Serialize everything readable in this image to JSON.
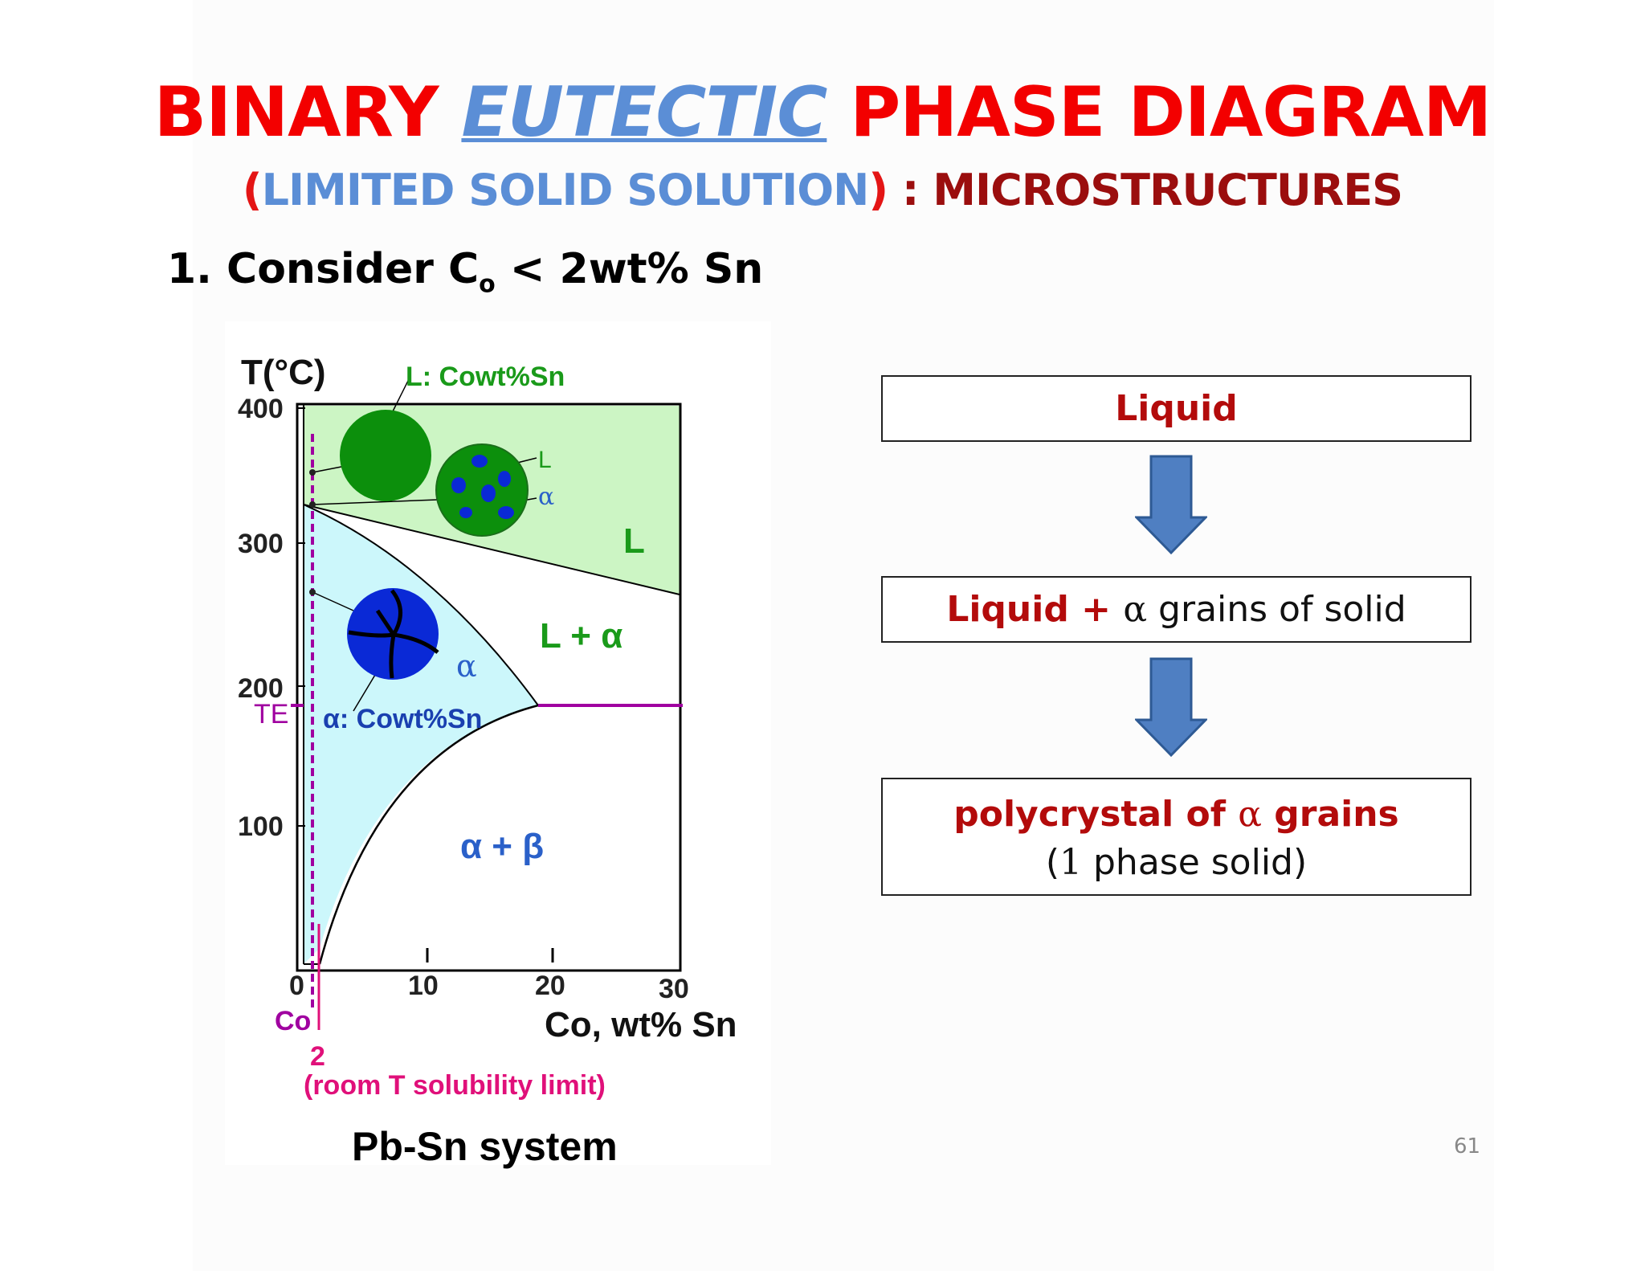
{
  "title": {
    "part1": "BINARY",
    "part2": "EUTECTIC",
    "part3": "PHASE DIAGRAM"
  },
  "subtitle": {
    "open_paren": "(",
    "text": "LIMITED SOLID SOLUTION",
    "close_paren": ")",
    "colon": ":",
    "right": "MICROSTRUCTURES"
  },
  "point": {
    "number": "1.",
    "text_before": "Consider C",
    "sub": "o",
    "text_after": "< 2wt% Sn"
  },
  "diagram": {
    "y_axis_label": "T(°C)",
    "y_ticks": [
      "400",
      "300",
      "200",
      "100"
    ],
    "x_ticks": [
      "0",
      "10",
      "20",
      "30"
    ],
    "x_axis_label": "Co, wt% Sn",
    "te_label": "TE",
    "top_label": "L:  Cowt%Sn",
    "legend_L": "L",
    "legend_alpha": "α",
    "region_L": "L",
    "region_L_alpha": "L + α",
    "region_alpha": "α",
    "alpha_label": "α:  Cowt%Sn",
    "region_alpha_beta": "α + β",
    "co_label": "Co",
    "co_value": "2",
    "solubility_note": "(room T solubility limit)",
    "colors": {
      "liquid": "#ccf5c4",
      "solid_alpha": "#ccf7fb",
      "green_disc": "#0c8f0c",
      "blue_grain": "#0a29d6",
      "te_line": "#a000a0",
      "co_line": "#e0107a"
    }
  },
  "boxes": [
    {
      "label": "Liquid"
    },
    {
      "red": "Liquid + ",
      "alpha": "α",
      "rest": " grains of solid"
    },
    {
      "red1": "polycrystal of ",
      "alpha": "α",
      "red2": " grains",
      "line2_open": "(",
      "line2_num": "1",
      "line2_rest": " phase solid)"
    }
  ],
  "caption": "Pb-Sn system",
  "page_number": "61"
}
